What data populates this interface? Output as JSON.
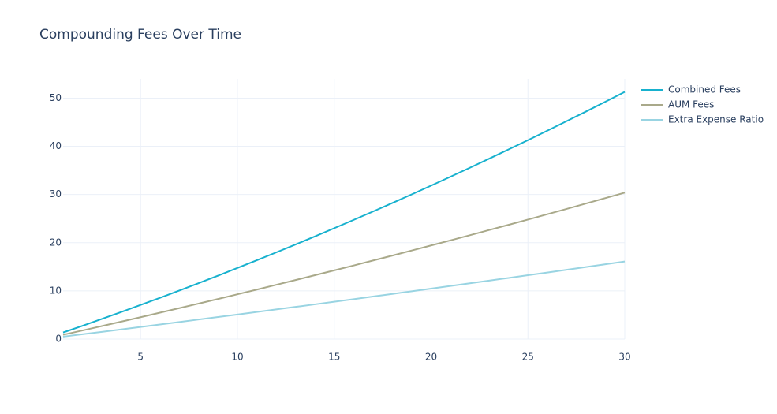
{
  "chart_data": {
    "type": "line",
    "title": "Compounding Fees Over Time",
    "x": [
      1,
      2,
      3,
      4,
      5,
      6,
      7,
      8,
      9,
      10,
      11,
      12,
      13,
      14,
      15,
      16,
      17,
      18,
      19,
      20,
      21,
      22,
      23,
      24,
      25,
      26,
      27,
      28,
      29,
      30
    ],
    "series": [
      {
        "name": "Combined Fees",
        "color": "#17b1ce",
        "values": [
          1.37,
          2.76,
          4.18,
          5.62,
          7.08,
          8.57,
          10.08,
          11.61,
          13.17,
          14.75,
          16.35,
          17.98,
          19.63,
          21.31,
          23.01,
          24.73,
          26.47,
          28.24,
          30.03,
          31.85,
          33.69,
          35.55,
          37.44,
          39.35,
          41.28,
          43.24,
          45.22,
          47.22,
          49.25,
          51.3
        ]
      },
      {
        "name": "AUM Fees",
        "color": "#a9a98a",
        "values": [
          0.89,
          1.79,
          2.7,
          3.62,
          4.54,
          5.48,
          6.42,
          7.37,
          8.33,
          9.3,
          10.27,
          11.26,
          12.25,
          13.25,
          14.26,
          15.27,
          16.3,
          17.33,
          18.38,
          19.43,
          20.49,
          21.55,
          22.63,
          23.71,
          24.8,
          25.91,
          27.01,
          28.13,
          29.26,
          30.39
        ]
      },
      {
        "name": "Extra Expense Ratio",
        "color": "#99d4e2",
        "values": [
          0.5,
          1.0,
          1.5,
          2.01,
          2.52,
          3.03,
          3.54,
          4.06,
          4.58,
          5.1,
          5.62,
          6.15,
          6.68,
          7.21,
          7.75,
          8.29,
          8.83,
          9.37,
          9.92,
          10.47,
          11.02,
          11.57,
          12.13,
          12.69,
          13.25,
          13.81,
          14.38,
          14.95,
          15.52,
          16.1
        ]
      }
    ],
    "xlim": [
      1,
      30
    ],
    "xticks": [
      5,
      10,
      15,
      20,
      25,
      30
    ],
    "ylim": [
      0,
      54
    ],
    "yticks": [
      0,
      10,
      20,
      30,
      40,
      50
    ],
    "grid": true,
    "legend": "right"
  }
}
